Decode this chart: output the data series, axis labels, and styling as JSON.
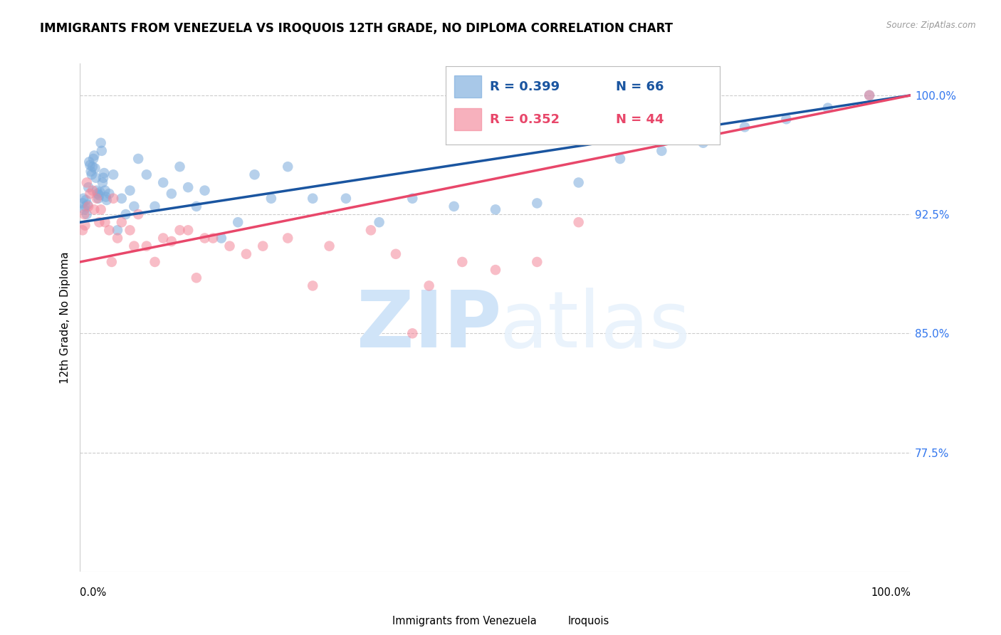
{
  "title": "IMMIGRANTS FROM VENEZUELA VS IROQUOIS 12TH GRADE, NO DIPLOMA CORRELATION CHART",
  "source": "Source: ZipAtlas.com",
  "ylabel": "12th Grade, No Diploma",
  "ytick_values": [
    77.5,
    85.0,
    92.5,
    100.0
  ],
  "ytick_labels": [
    "77.5%",
    "85.0%",
    "92.5%",
    "100.0%"
  ],
  "legend_blue_label": "Immigrants from Venezuela",
  "legend_pink_label": "Iroquois",
  "blue_r_text": "R = 0.399",
  "blue_n_text": "N = 66",
  "pink_r_text": "R = 0.352",
  "pink_n_text": "N = 44",
  "blue_fill": "#7AABDC",
  "pink_fill": "#F4879A",
  "blue_line": "#1A55A0",
  "pink_line": "#E8476A",
  "blue_tick_color": "#3377EE",
  "xlim": [
    0,
    100
  ],
  "ylim": [
    70,
    102
  ],
  "blue_line_x0": 0,
  "blue_line_y0": 92.0,
  "blue_line_x1": 100,
  "blue_line_y1": 100.0,
  "pink_line_x0": 0,
  "pink_line_y0": 89.5,
  "pink_line_x1": 100,
  "pink_line_y1": 100.0,
  "blue_x": [
    0.3,
    0.4,
    0.5,
    0.6,
    0.7,
    0.8,
    0.9,
    1.0,
    1.1,
    1.2,
    1.3,
    1.4,
    1.5,
    1.6,
    1.7,
    1.8,
    1.9,
    2.0,
    2.1,
    2.2,
    2.3,
    2.4,
    2.5,
    2.6,
    2.7,
    2.8,
    2.9,
    3.0,
    3.1,
    3.2,
    3.5,
    4.0,
    4.5,
    5.0,
    5.5,
    6.0,
    6.5,
    7.0,
    8.0,
    9.0,
    10.0,
    11.0,
    12.0,
    13.0,
    14.0,
    15.0,
    17.0,
    19.0,
    21.0,
    23.0,
    25.0,
    28.0,
    32.0,
    36.0,
    40.0,
    45.0,
    50.0,
    55.0,
    60.0,
    65.0,
    70.0,
    75.0,
    80.0,
    85.0,
    90.0,
    95.0
  ],
  "blue_y": [
    93.2,
    93.5,
    92.8,
    93.0,
    93.4,
    92.5,
    93.1,
    94.2,
    95.8,
    95.6,
    95.2,
    95.0,
    95.5,
    96.0,
    96.2,
    95.4,
    94.8,
    94.0,
    93.8,
    93.5,
    93.7,
    93.9,
    97.0,
    96.5,
    94.5,
    94.8,
    95.1,
    94.0,
    93.6,
    93.4,
    93.8,
    95.0,
    91.5,
    93.5,
    92.5,
    94.0,
    93.0,
    96.0,
    95.0,
    93.0,
    94.5,
    93.8,
    95.5,
    94.2,
    93.0,
    94.0,
    91.0,
    92.0,
    95.0,
    93.5,
    95.5,
    93.5,
    93.5,
    92.0,
    93.5,
    93.0,
    92.8,
    93.2,
    94.5,
    96.0,
    96.5,
    97.0,
    98.0,
    98.5,
    99.2,
    100.0
  ],
  "pink_x": [
    0.3,
    0.5,
    0.6,
    0.8,
    1.0,
    1.2,
    1.5,
    1.7,
    2.0,
    2.3,
    2.5,
    3.0,
    3.5,
    3.8,
    4.0,
    4.5,
    5.0,
    6.0,
    6.5,
    7.0,
    8.0,
    9.0,
    10.0,
    11.0,
    12.0,
    13.0,
    14.0,
    15.0,
    16.0,
    18.0,
    20.0,
    22.0,
    25.0,
    28.0,
    30.0,
    35.0,
    38.0,
    40.0,
    42.0,
    46.0,
    50.0,
    55.0,
    60.0,
    95.0
  ],
  "pink_y": [
    91.5,
    92.5,
    91.8,
    94.5,
    93.0,
    93.8,
    94.0,
    92.8,
    93.5,
    92.0,
    92.8,
    92.0,
    91.5,
    89.5,
    93.5,
    91.0,
    92.0,
    91.5,
    90.5,
    92.5,
    90.5,
    89.5,
    91.0,
    90.8,
    91.5,
    91.5,
    88.5,
    91.0,
    91.0,
    90.5,
    90.0,
    90.5,
    91.0,
    88.0,
    90.5,
    91.5,
    90.0,
    85.0,
    88.0,
    89.5,
    89.0,
    89.5,
    92.0,
    100.0
  ]
}
